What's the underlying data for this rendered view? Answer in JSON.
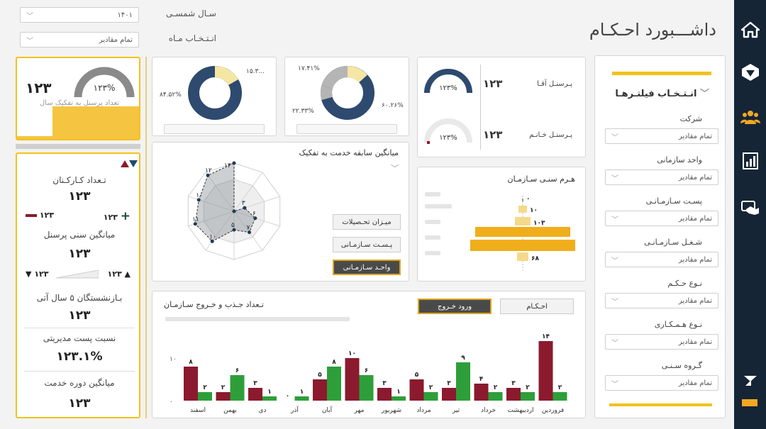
{
  "header": {
    "title": "داشـــبورد احـکـام",
    "year_label": "سـال شمسـی",
    "year_value": "۱۴۰۱",
    "month_label": "انـتـخـاب مـاه",
    "month_value": "تمام مقادیر"
  },
  "filters": {
    "title": "انـتـخـاب فیلتـرهـا",
    "items": [
      {
        "label": "شرکت",
        "value": "تمام مقادیر"
      },
      {
        "label": "واحد سازمانی",
        "value": "تمام مقادیر"
      },
      {
        "label": "پسـت سـازمـانـی",
        "value": "تمام مقادیر"
      },
      {
        "label": "شـغـل سـازمـانـی",
        "value": "تمام مقادیر"
      },
      {
        "label": "نـوع حـکـم",
        "value": "تمام مقادیر"
      },
      {
        "label": "نـوع هـمـکـاری",
        "value": "تمام مقادیر"
      },
      {
        "label": "گـروه سـنـی",
        "value": "تمام مقادیر"
      }
    ]
  },
  "top_kpi": {
    "value": "۱۲۳",
    "gauge_text": "۱۲۳%",
    "caption": "تعداد پرسنل به تفکیک سال"
  },
  "left_kpis": {
    "headcount_label": "تـعداد کـارکـنان",
    "headcount_value": "۱۲۳",
    "male_value": "۱۲۳",
    "female_value": "۱۲۳",
    "avg_age_label": "میانگین سنی پرسنل",
    "avg_age_value": "۱۲۳",
    "age_up_value": "۱۲۳",
    "age_down_value": "۱۲۳",
    "retire_label": "بـازنشستگان ۵ سال آتی",
    "retire_value": "۱۲۳",
    "mgmt_label": "نسبت پست مدیریتی",
    "mgmt_value": "۱۲۳.۱%",
    "service_label": "میانگین دوره خدمت",
    "service_value": "۱۲۳"
  },
  "donut1": {
    "left_label": "۸۴.۵۲%",
    "right_label": "۱۵.۳...",
    "colors": [
      "#2e4a6e",
      "#f5e6a3"
    ]
  },
  "donut2": {
    "left_label": "۲۲.۳۳%",
    "right_label": "۶۰.۲۶%",
    "top_label": "۱۷.۴۱%",
    "colors": [
      "#2e4a6e",
      "#b5b5b5",
      "#f5e6a3"
    ]
  },
  "gender": {
    "male_label": "پـرسنـل آقـا",
    "male_value": "۱۲۳",
    "male_gauge": "۱۲۳%",
    "female_label": "پـرسنـل خـانـم",
    "female_value": "۱۲۳",
    "female_gauge": "۱۲۳%"
  },
  "radar": {
    "title": "میانگین سابقه خدمت به تفکیک",
    "buttons": [
      "میـزان تحـصیلات",
      "پـسـت سـازمـانی",
      "واحـد سـازمـانی"
    ],
    "active_button": 2
  },
  "pyramid": {
    "title": "هـرم سنـی سـازمـان"
  },
  "bars": {
    "title": "تـعداد جـذب و خـروج سـازمـان",
    "tabs": [
      "احـکـام",
      "ورود خـروج"
    ],
    "active_tab": 1,
    "colors": {
      "entry": "#8b1a2e",
      "exit": "#2e9e3a"
    }
  },
  "chart_data": [
    {
      "type": "bar",
      "title": "تـعداد جـذب و خـروج سـازمـان",
      "categories": [
        "فروردین",
        "اردیبهشت",
        "خرداد",
        "تیر",
        "مرداد",
        "شهریور",
        "مهر",
        "آبان",
        "آذر",
        "دی",
        "بهمن",
        "اسفند"
      ],
      "ylim": [
        0,
        15
      ],
      "yticks": [
        "۰",
        "۱۰"
      ],
      "series": [
        {
          "name": "entry",
          "values": [
            14,
            3,
            4,
            3,
            5,
            3,
            10,
            5,
            0,
            3,
            2,
            8
          ]
        },
        {
          "name": "exit",
          "values": [
            2,
            2,
            2,
            9,
            2,
            1,
            6,
            8,
            1,
            1,
            6,
            2
          ]
        }
      ],
      "value_labels": {
        "entry": [
          "۱۴",
          "۳",
          "۴",
          "۳",
          "۵",
          "۳",
          "۱۰",
          "۵",
          "۰",
          "۳",
          "۲",
          "۸"
        ],
        "exit": [
          "۲",
          "۲",
          "۲",
          "۹",
          "۲",
          "۱",
          "۶",
          "۸",
          "۱",
          "۱",
          "۶",
          "۲"
        ]
      }
    },
    {
      "type": "radar",
      "title": "میانگین سابقه خدمت به تفکیک",
      "values": [
        13,
        0,
        3,
        6,
        7,
        5,
        10,
        11,
        10,
        12
      ],
      "labels": [
        "۱۳",
        "۰",
        "۳",
        "۶",
        "۷",
        "۵",
        "۱۰",
        "۱۱",
        "۱۰",
        "۱۲"
      ],
      "rmax": 13
    },
    {
      "type": "bar",
      "title": "هـرم سنـی سـازمـان",
      "orientation": "horizontal",
      "values": [
        0,
        10,
        103,
        2000,
        2200,
        68
      ],
      "labels": [
        "۰",
        "۱۰",
        "۱۰۳",
        "",
        "",
        "۶۸"
      ]
    }
  ]
}
